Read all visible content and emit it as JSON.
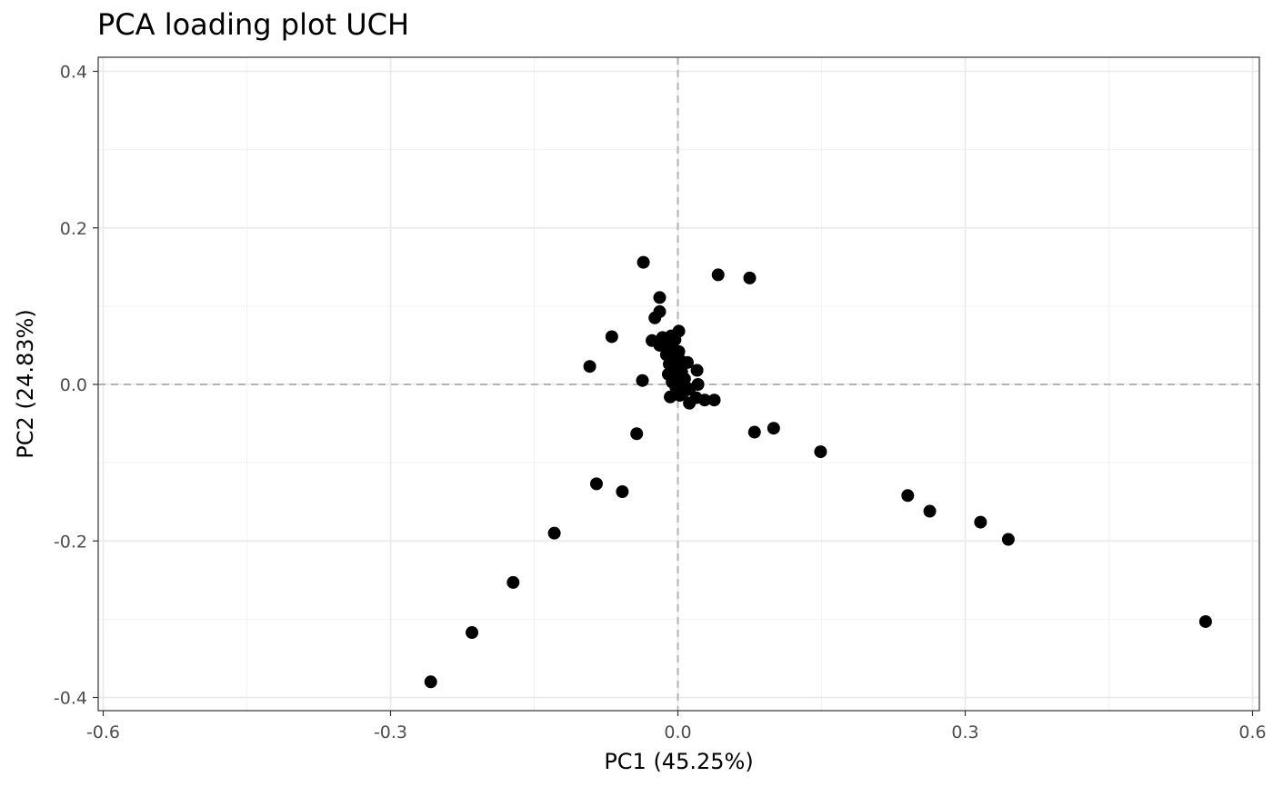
{
  "chart_data": {
    "type": "scatter",
    "title": "PCA loading plot UCH",
    "xlabel": "PC1 (45.25%)",
    "ylabel": "PC2 (24.83%)",
    "xlim": [
      -0.6,
      0.6
    ],
    "ylim": [
      -0.4,
      0.4
    ],
    "x_ticks": [
      -0.6,
      -0.3,
      0.0,
      0.3,
      0.6
    ],
    "x_tick_labels": [
      "-0.6",
      "-0.3",
      "0.0",
      "0.3",
      "0.6"
    ],
    "y_ticks": [
      -0.4,
      -0.2,
      0.0,
      0.2,
      0.4
    ],
    "y_tick_labels": [
      "-0.4",
      "-0.2",
      "0.0",
      "0.2",
      "0.4"
    ],
    "grid": true,
    "reference_lines": {
      "x": 0,
      "y": 0,
      "style": "dashed"
    },
    "point_color": "#000000",
    "points": [
      {
        "x": -0.036,
        "y": 0.156
      },
      {
        "x": 0.042,
        "y": 0.14
      },
      {
        "x": 0.075,
        "y": 0.136
      },
      {
        "x": -0.019,
        "y": 0.111
      },
      {
        "x": -0.019,
        "y": 0.093
      },
      {
        "x": -0.024,
        "y": 0.085
      },
      {
        "x": -0.069,
        "y": 0.061
      },
      {
        "x": 0.001,
        "y": 0.068
      },
      {
        "x": -0.007,
        "y": 0.062
      },
      {
        "x": -0.016,
        "y": 0.06
      },
      {
        "x": -0.027,
        "y": 0.056
      },
      {
        "x": -0.003,
        "y": 0.057
      },
      {
        "x": -0.019,
        "y": 0.05
      },
      {
        "x": -0.01,
        "y": 0.048
      },
      {
        "x": -0.004,
        "y": 0.044
      },
      {
        "x": -0.012,
        "y": 0.038
      },
      {
        "x": 0.001,
        "y": 0.042
      },
      {
        "x": -0.006,
        "y": 0.034
      },
      {
        "x": 0.003,
        "y": 0.03
      },
      {
        "x": -0.009,
        "y": 0.026
      },
      {
        "x": 0.01,
        "y": 0.028
      },
      {
        "x": -0.001,
        "y": 0.024
      },
      {
        "x": -0.092,
        "y": 0.023
      },
      {
        "x": 0.02,
        "y": 0.018
      },
      {
        "x": 0.004,
        "y": 0.016
      },
      {
        "x": -0.01,
        "y": 0.013
      },
      {
        "x": -0.003,
        "y": 0.01
      },
      {
        "x": 0.007,
        "y": 0.007
      },
      {
        "x": -0.037,
        "y": 0.005
      },
      {
        "x": -0.006,
        "y": 0.003
      },
      {
        "x": 0.021,
        "y": 0.0
      },
      {
        "x": 0.004,
        "y": -0.002
      },
      {
        "x": -0.002,
        "y": -0.004
      },
      {
        "x": 0.012,
        "y": -0.006
      },
      {
        "x": 0.006,
        "y": -0.01
      },
      {
        "x": -0.008,
        "y": -0.016
      },
      {
        "x": 0.002,
        "y": -0.014
      },
      {
        "x": 0.019,
        "y": -0.017
      },
      {
        "x": 0.028,
        "y": -0.02
      },
      {
        "x": 0.038,
        "y": -0.02
      },
      {
        "x": 0.012,
        "y": -0.024
      },
      {
        "x": 0.08,
        "y": -0.061
      },
      {
        "x": 0.1,
        "y": -0.056
      },
      {
        "x": -0.043,
        "y": -0.063
      },
      {
        "x": 0.149,
        "y": -0.086
      },
      {
        "x": -0.085,
        "y": -0.127
      },
      {
        "x": -0.058,
        "y": -0.137
      },
      {
        "x": 0.24,
        "y": -0.142
      },
      {
        "x": 0.263,
        "y": -0.162
      },
      {
        "x": 0.316,
        "y": -0.176
      },
      {
        "x": 0.345,
        "y": -0.198
      },
      {
        "x": -0.129,
        "y": -0.19
      },
      {
        "x": -0.172,
        "y": -0.253
      },
      {
        "x": -0.215,
        "y": -0.317
      },
      {
        "x": 0.551,
        "y": -0.303
      },
      {
        "x": -0.258,
        "y": -0.38
      }
    ]
  }
}
